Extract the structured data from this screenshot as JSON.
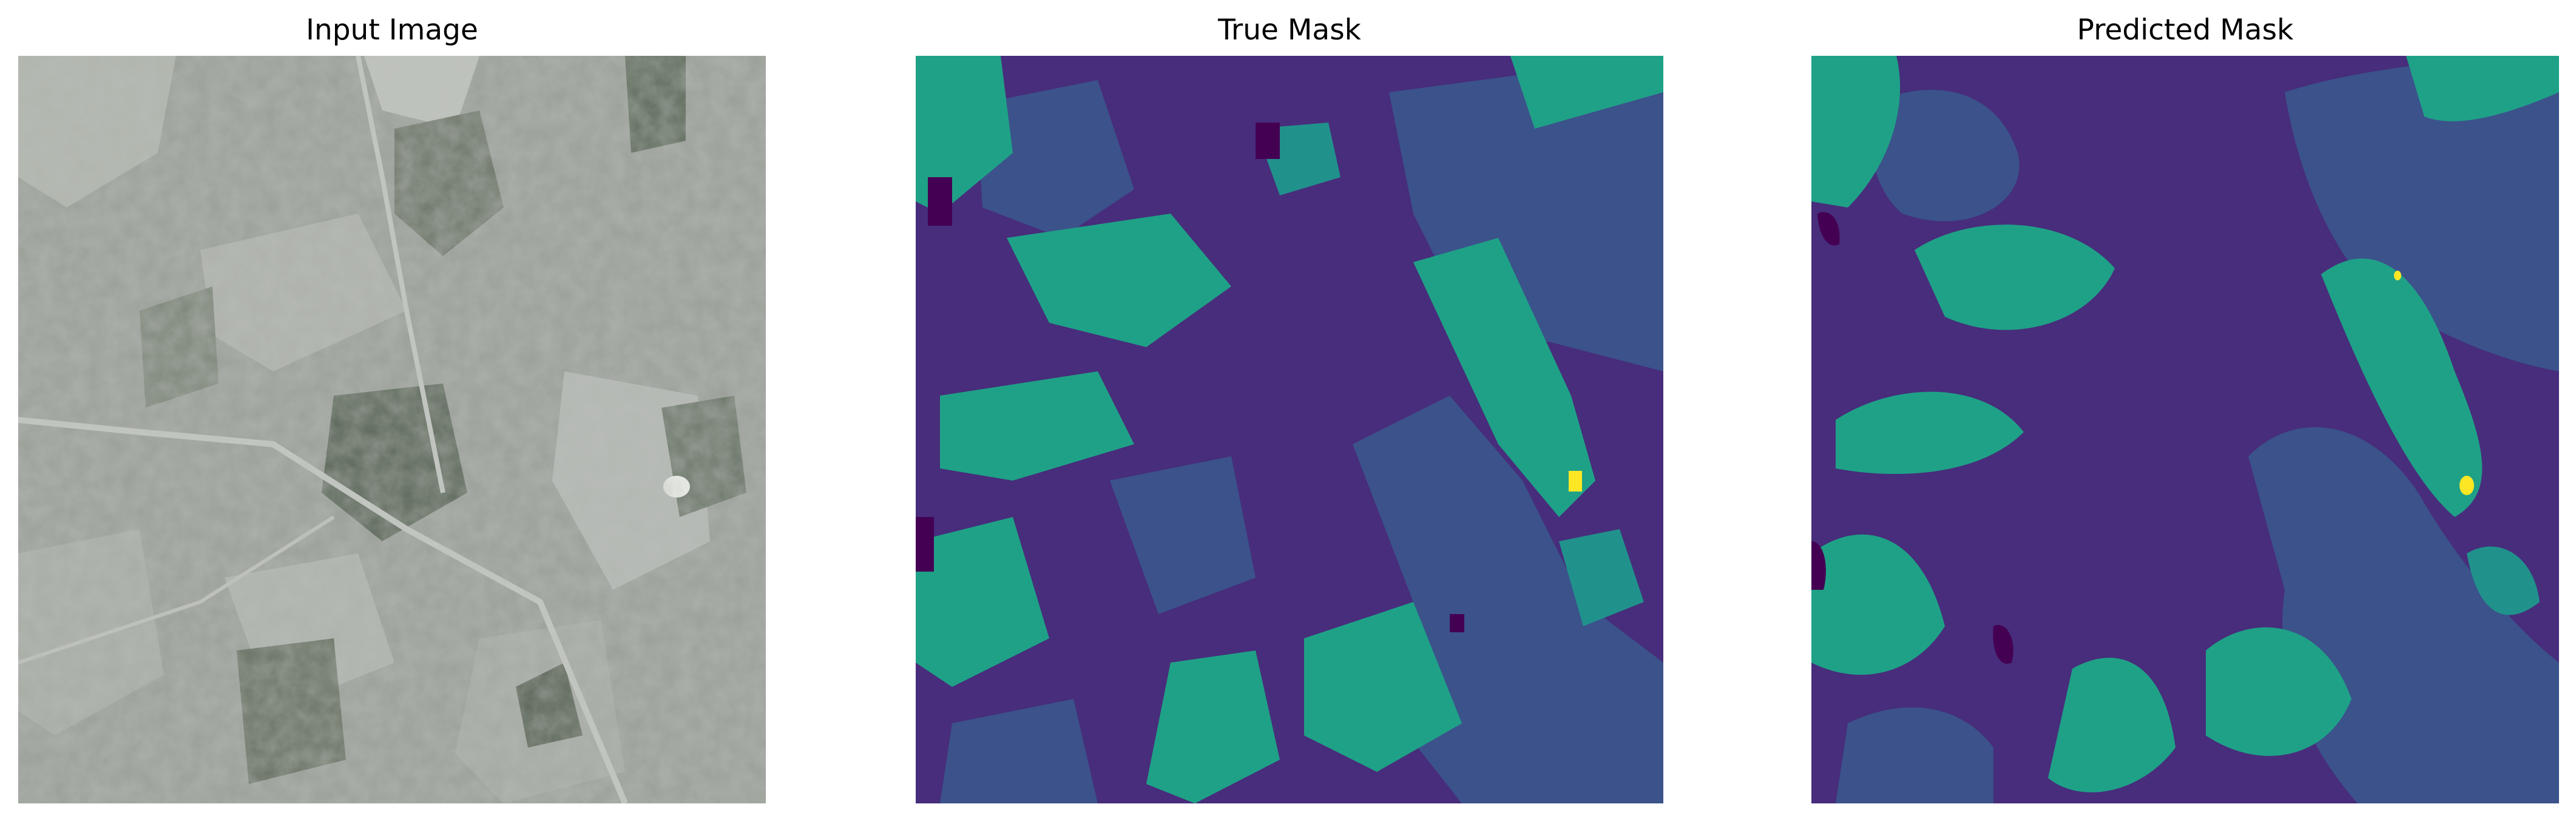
{
  "panels": [
    {
      "title": "Input Image"
    },
    {
      "title": "True Mask"
    },
    {
      "title": "Predicted Mask"
    }
  ],
  "colors": {
    "class_0": "#440154",
    "class_1": "#472d7b",
    "class_2": "#3b528b",
    "class_3": "#21918c",
    "class_4": "#1fa187",
    "class_5": "#fde725"
  }
}
